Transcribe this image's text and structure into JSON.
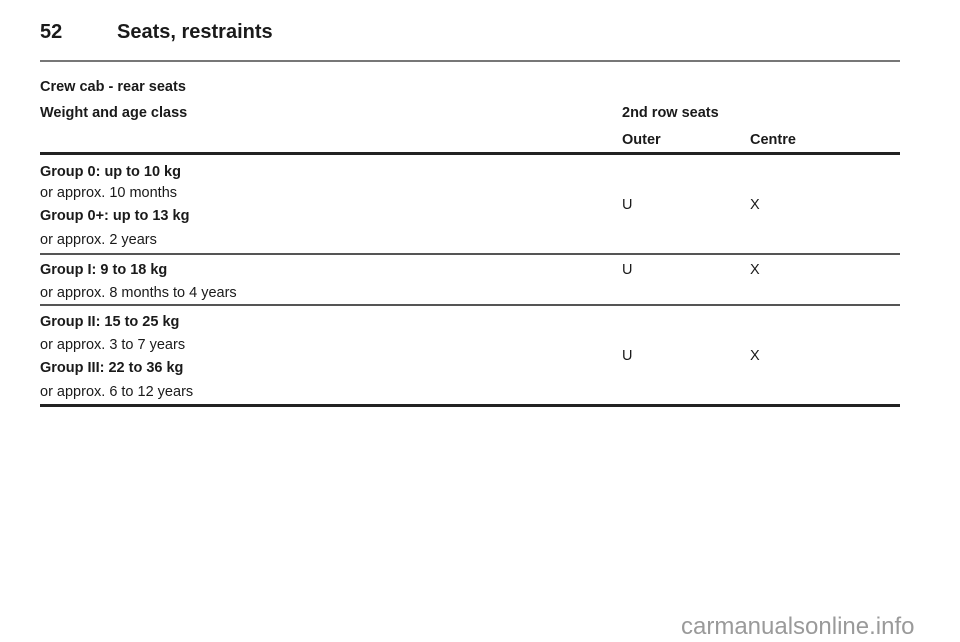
{
  "page": {
    "number": "52",
    "section": "Seats, restraints"
  },
  "table": {
    "caption": "Crew cab - rear seats",
    "col_header": "Weight and age class",
    "group_header": "2nd row seats",
    "sub_headers": [
      "Outer",
      "Centre"
    ],
    "rows": [
      {
        "lines": [
          {
            "text": "Group 0: up to 10 kg",
            "bold": true
          },
          {
            "text": "or approx. 10 months",
            "bold": false
          },
          {
            "text": "Group 0+: up to 13 kg",
            "bold": true
          },
          {
            "text": "or approx. 2 years",
            "bold": false
          }
        ],
        "outer": "U",
        "centre": "X"
      },
      {
        "lines": [
          {
            "text": "Group I: 9 to 18 kg",
            "bold": true
          },
          {
            "text": "or approx. 8 months to 4 years",
            "bold": false
          }
        ],
        "outer": "U",
        "centre": "X"
      },
      {
        "lines": [
          {
            "text": "Group II: 15 to 25 kg",
            "bold": true
          },
          {
            "text": "or approx. 3 to 7 years",
            "bold": false
          },
          {
            "text": "Group III: 22 to 36 kg",
            "bold": true
          },
          {
            "text": "or approx. 6 to 12 years",
            "bold": false
          }
        ],
        "outer": "U",
        "centre": "X"
      }
    ]
  },
  "watermark": "carmanualsonline.info"
}
